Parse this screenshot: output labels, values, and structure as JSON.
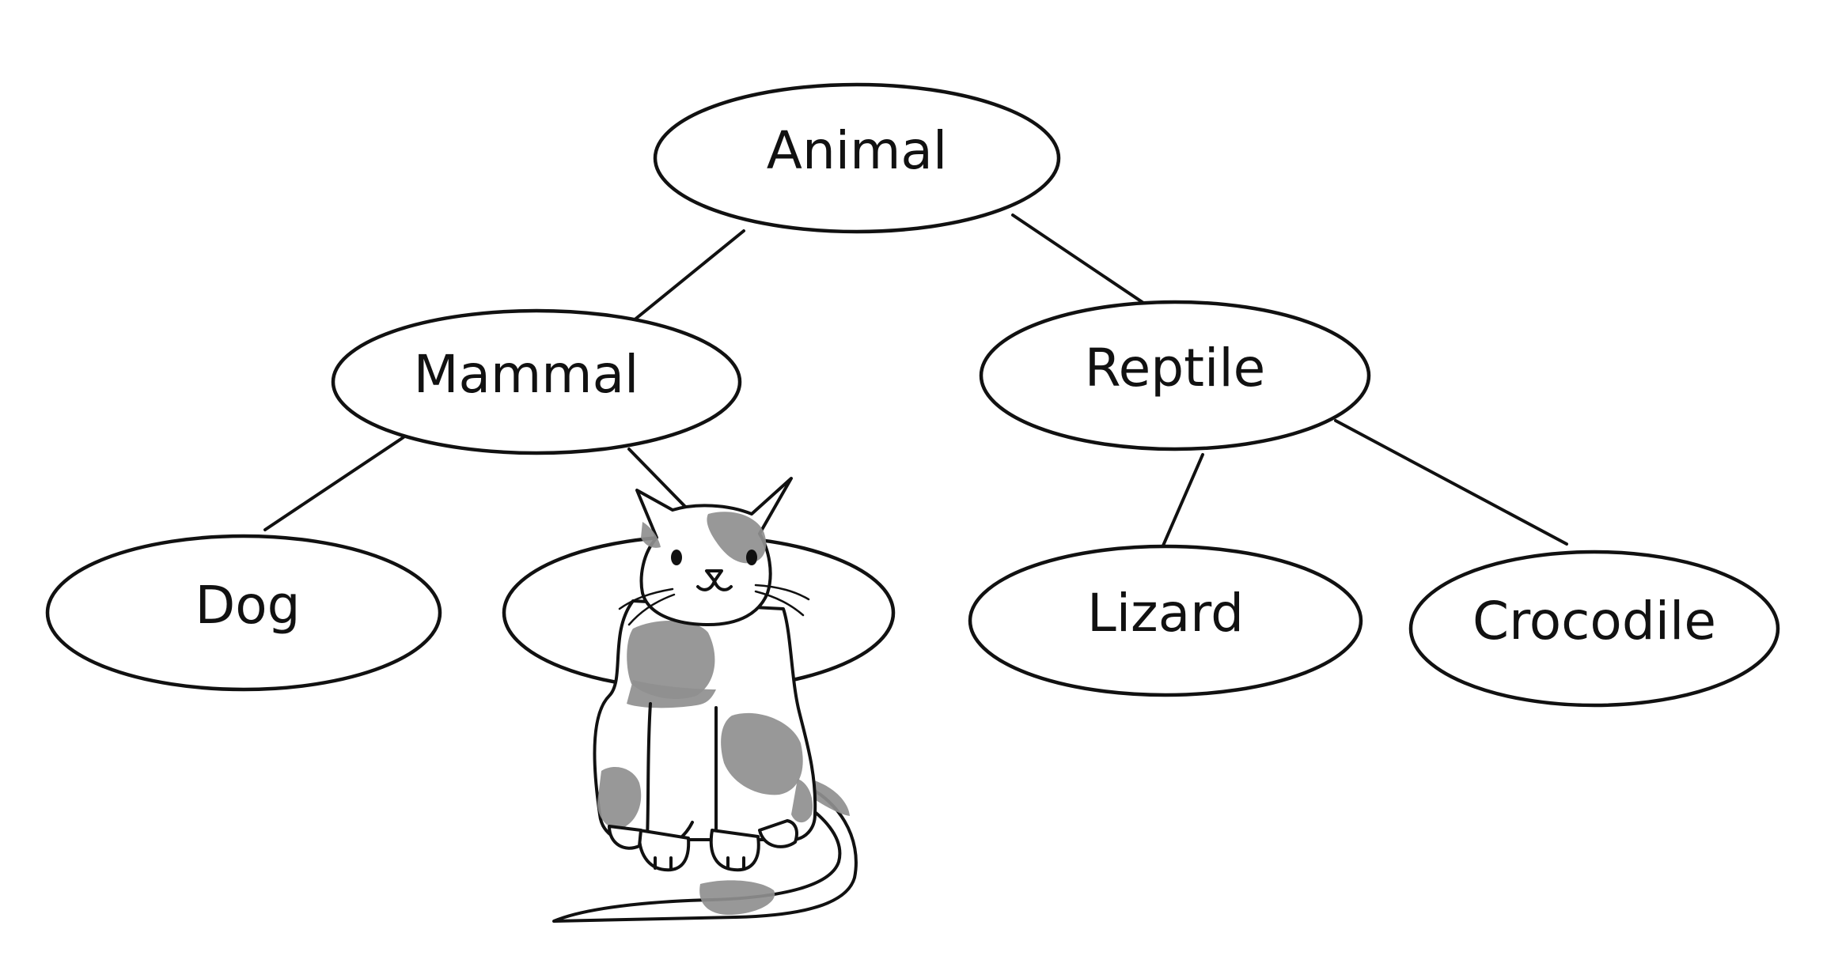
{
  "diagram": {
    "nodes": {
      "root": {
        "label": "Animal"
      },
      "mammal": {
        "label": "Mammal"
      },
      "reptile": {
        "label": "Reptile"
      },
      "dog": {
        "label": "Dog"
      },
      "cat_slot": {
        "label": ""
      },
      "lizard": {
        "label": "Lizard"
      },
      "crocodile": {
        "label": "Crocodile"
      }
    },
    "edges": [
      {
        "from": "Animal",
        "to": "Mammal"
      },
      {
        "from": "Animal",
        "to": "Reptile"
      },
      {
        "from": "Mammal",
        "to": "Dog"
      },
      {
        "from": "Mammal",
        "to": "cat_slot"
      },
      {
        "from": "Reptile",
        "to": "Lizard"
      },
      {
        "from": "Reptile",
        "to": "Crocodile"
      }
    ]
  },
  "illustration": {
    "subject": "calico-cat-icon",
    "colors": {
      "spots": "#8f8f8f",
      "outline": "#111111",
      "body": "#ffffff"
    }
  }
}
